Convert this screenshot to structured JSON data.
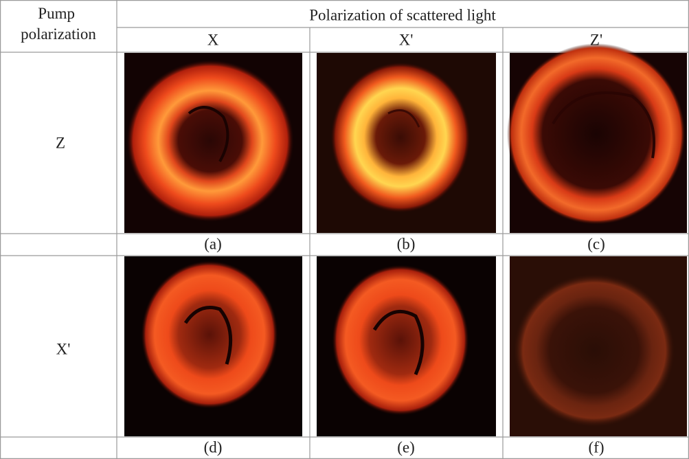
{
  "table": {
    "corner": "Pump polarization",
    "group_header": "Polarization of scattered light",
    "columns": [
      "X",
      "X'",
      "Z'"
    ],
    "rows": [
      {
        "label": "Z",
        "captions": [
          "(a)",
          "(b)",
          "(c)"
        ]
      },
      {
        "label": "X'",
        "captions": [
          "(d)",
          "(e)",
          "(f)"
        ]
      }
    ]
  }
}
